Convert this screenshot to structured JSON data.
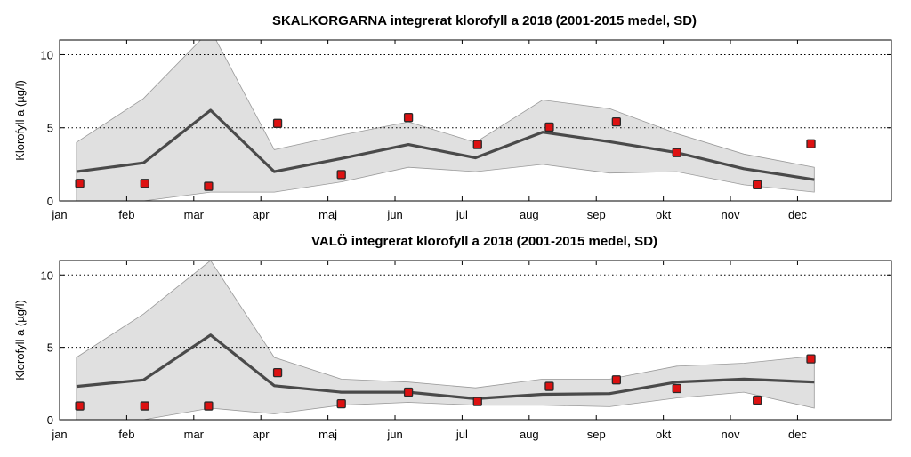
{
  "chart_data": [
    {
      "type": "line",
      "title": "SKALKORGARNA integrerat klorofyll a 2018 (2001-2015 medel, SD)",
      "xlabel": "",
      "ylabel": "Klorofyll a (µg/l)",
      "ylim": [
        0,
        11
      ],
      "xlim": [
        0,
        12.4
      ],
      "yticks": [
        0,
        5,
        10
      ],
      "grid_y": [
        5,
        10
      ],
      "month_labels": [
        "jan",
        "feb",
        "mar",
        "apr",
        "maj",
        "jun",
        "jul",
        "aug",
        "sep",
        "okt",
        "nov",
        "dec"
      ],
      "mean_series": {
        "name": "medel 2001-2015",
        "x": [
          0.25,
          1.25,
          2.25,
          3.2,
          4.2,
          5.2,
          6.2,
          7.2,
          8.2,
          9.2,
          10.2,
          11.25
        ],
        "values": [
          2.0,
          2.6,
          6.2,
          2.0,
          2.9,
          3.85,
          2.95,
          4.7,
          4.05,
          3.3,
          2.2,
          1.45
        ]
      },
      "sd_band": {
        "x": [
          0.25,
          1.25,
          2.25,
          3.2,
          4.2,
          5.2,
          6.2,
          7.2,
          8.2,
          9.2,
          10.2,
          11.25
        ],
        "upper": [
          4.0,
          7.0,
          11.7,
          3.5,
          4.5,
          5.4,
          4.0,
          6.9,
          6.3,
          4.6,
          3.2,
          2.3
        ],
        "lower": [
          0.0,
          0.0,
          0.6,
          0.6,
          1.3,
          2.3,
          2.0,
          2.5,
          1.9,
          2.0,
          1.1,
          0.6
        ]
      },
      "observations": {
        "name": "2018",
        "x": [
          0.3,
          1.27,
          2.22,
          3.25,
          4.2,
          5.2,
          6.23,
          7.3,
          8.3,
          9.2,
          10.4,
          11.2
        ],
        "values": [
          1.2,
          1.2,
          1.0,
          5.3,
          1.8,
          5.7,
          3.85,
          5.05,
          5.4,
          3.3,
          1.1,
          3.9
        ]
      }
    },
    {
      "type": "line",
      "title": "VALÖ integrerat klorofyll a 2018 (2001-2015 medel, SD)",
      "xlabel": "",
      "ylabel": "Klorofyll a (µg/l)",
      "ylim": [
        0,
        11
      ],
      "xlim": [
        0,
        12.4
      ],
      "yticks": [
        0,
        5,
        10
      ],
      "grid_y": [
        5,
        10
      ],
      "month_labels": [
        "jan",
        "feb",
        "mar",
        "apr",
        "maj",
        "jun",
        "jul",
        "aug",
        "sep",
        "okt",
        "nov",
        "dec"
      ],
      "mean_series": {
        "name": "medel 2001-2015",
        "x": [
          0.25,
          1.25,
          2.25,
          3.2,
          4.2,
          5.2,
          6.2,
          7.2,
          8.2,
          9.2,
          10.2,
          11.25
        ],
        "values": [
          2.3,
          2.75,
          5.85,
          2.35,
          1.9,
          1.9,
          1.45,
          1.75,
          1.8,
          2.6,
          2.8,
          2.6
        ]
      },
      "sd_band": {
        "x": [
          0.25,
          1.25,
          2.25,
          3.2,
          4.2,
          5.2,
          6.2,
          7.2,
          8.2,
          9.2,
          10.2,
          11.25
        ],
        "upper": [
          4.3,
          7.3,
          11.0,
          4.3,
          2.8,
          2.6,
          2.2,
          2.8,
          2.8,
          3.7,
          3.9,
          4.4
        ],
        "lower": [
          0.0,
          0.0,
          0.8,
          0.4,
          1.0,
          1.2,
          1.0,
          1.0,
          0.9,
          1.5,
          1.9,
          0.8
        ]
      },
      "observations": {
        "name": "2018",
        "x": [
          0.3,
          1.27,
          2.22,
          3.25,
          4.2,
          5.2,
          6.23,
          7.3,
          8.3,
          9.2,
          10.4,
          11.2
        ],
        "values": [
          0.95,
          0.95,
          0.95,
          3.25,
          1.1,
          1.9,
          1.25,
          2.3,
          2.75,
          2.15,
          1.35,
          4.2
        ]
      }
    }
  ],
  "colors": {
    "band": "#e0e0e0",
    "band_edge": "#9a9a9a",
    "mean_line": "#4a4a4a",
    "marker_fill": "#dd1111",
    "marker_edge": "#2a2a2a",
    "grid": "#000000"
  }
}
